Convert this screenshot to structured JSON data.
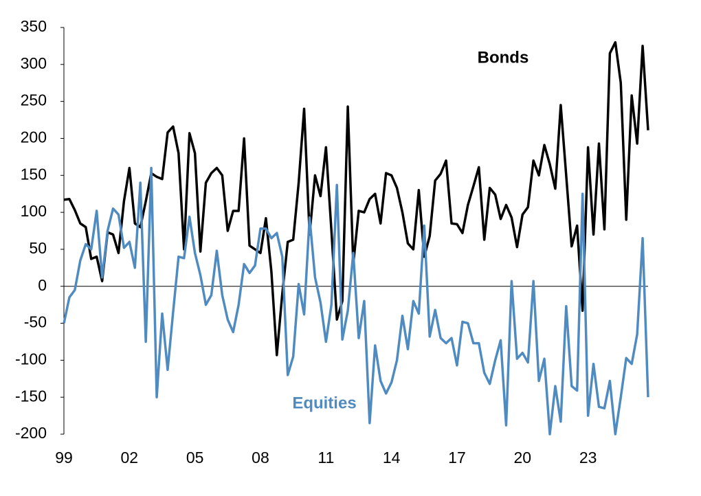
{
  "chart_data": {
    "type": "line",
    "categories": [
      "99",
      null,
      null,
      null,
      null,
      null,
      null,
      null,
      null,
      null,
      null,
      null,
      "02",
      null,
      null,
      null,
      null,
      null,
      null,
      null,
      null,
      null,
      null,
      null,
      "05",
      null,
      null,
      null,
      null,
      null,
      null,
      null,
      null,
      null,
      null,
      null,
      "08",
      null,
      null,
      null,
      null,
      null,
      null,
      null,
      null,
      null,
      null,
      null,
      "11",
      null,
      null,
      null,
      null,
      null,
      null,
      null,
      null,
      null,
      null,
      null,
      "14",
      null,
      null,
      null,
      null,
      null,
      null,
      null,
      null,
      null,
      null,
      null,
      "17",
      null,
      null,
      null,
      null,
      null,
      null,
      null,
      null,
      null,
      null,
      null,
      "20",
      null,
      null,
      null,
      null,
      null,
      null,
      null,
      null,
      null,
      null,
      null,
      "23",
      null,
      null,
      null,
      null,
      null,
      null,
      null,
      null,
      null,
      null,
      null
    ],
    "series": [
      {
        "name": "Bonds",
        "color": "#000000",
        "values": [
          117,
          118,
          103,
          85,
          80,
          37,
          40,
          7,
          73,
          70,
          45,
          115,
          160,
          85,
          80,
          115,
          153,
          148,
          145,
          208,
          216,
          180,
          50,
          207,
          180,
          47,
          140,
          153,
          160,
          150,
          75,
          102,
          102,
          200,
          55,
          50,
          45,
          92,
          20,
          -93,
          -10,
          60,
          63,
          140,
          240,
          70,
          150,
          122,
          188,
          75,
          -45,
          -20,
          243,
          30,
          102,
          100,
          118,
          125,
          85,
          153,
          150,
          133,
          100,
          58,
          50,
          130,
          40,
          68,
          143,
          152,
          170,
          85,
          84,
          72,
          110,
          135,
          161,
          63,
          133,
          124,
          91,
          110,
          93,
          53,
          97,
          107,
          170,
          150,
          191,
          165,
          132,
          245,
          150,
          54,
          82,
          -33,
          188,
          70,
          193,
          77,
          315,
          330,
          275,
          90,
          258,
          193,
          325,
          211
        ]
      },
      {
        "name": "Equities",
        "color": "#4f8bc0",
        "values": [
          -50,
          -15,
          -5,
          35,
          57,
          50,
          102,
          12,
          75,
          105,
          97,
          52,
          60,
          25,
          140,
          -75,
          160,
          -150,
          -37,
          -113,
          -35,
          40,
          38,
          94,
          45,
          15,
          -25,
          -12,
          48,
          -12,
          -45,
          -62,
          -25,
          30,
          18,
          28,
          78,
          78,
          65,
          72,
          40,
          -120,
          -95,
          3,
          -38,
          93,
          12,
          -22,
          -75,
          -25,
          137,
          -72,
          -33,
          45,
          -70,
          -20,
          -185,
          -80,
          -128,
          -145,
          -130,
          -100,
          -40,
          -85,
          -20,
          -37,
          82,
          -68,
          -32,
          -70,
          -77,
          -70,
          -107,
          -48,
          -50,
          -77,
          -77,
          -117,
          -132,
          -100,
          -73,
          -188,
          7,
          -98,
          -90,
          -103,
          7,
          -128,
          -98,
          -200,
          -135,
          -183,
          -27,
          -135,
          -141,
          125,
          -175,
          -105,
          -163,
          -165,
          -128,
          -200,
          -150,
          -97,
          -105,
          -65,
          65,
          -150
        ]
      }
    ],
    "ylim": [
      -200,
      350
    ],
    "yticks": [
      -200,
      -150,
      -100,
      -50,
      0,
      50,
      100,
      150,
      200,
      250,
      300,
      350
    ],
    "grid": false
  }
}
